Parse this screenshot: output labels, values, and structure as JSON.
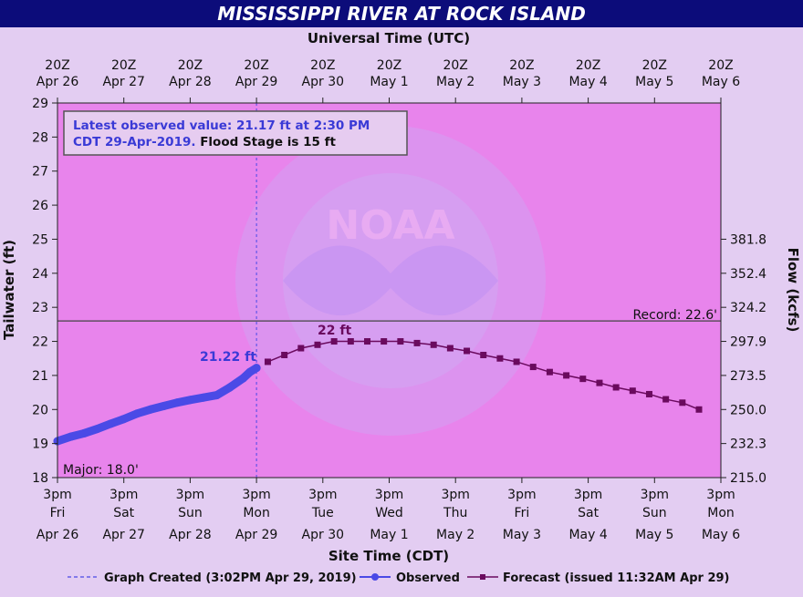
{
  "colors": {
    "title_bg": "#0c0c7a",
    "plot_bg": "#e884ec",
    "outer_bg": "#e3cdf2",
    "observed": "#4a4ae6",
    "forecast": "#6a0a5e",
    "record_line": "#444444",
    "annotation_blue": "#3a3ad6"
  },
  "chart_data": {
    "type": "line",
    "title": "MISSISSIPPI RIVER AT ROCK ISLAND",
    "top_axis_title": "Universal Time (UTC)",
    "xlabel": "Site Time (CDT)",
    "ylabel": "Tailwater (ft)",
    "y2label": "Flow (kcfs)",
    "ylim": [
      18,
      29
    ],
    "xlim": [
      0,
      10
    ],
    "x_units": "days after 3pm Fri Apr 26 (CDT)",
    "y_ticks": [
      "18",
      "19",
      "20",
      "21",
      "22",
      "23",
      "24",
      "25",
      "26",
      "27",
      "28",
      "29"
    ],
    "flow_ticks": [
      {
        "stage": 18,
        "label": "215.0"
      },
      {
        "stage": 19,
        "label": "232.3"
      },
      {
        "stage": 20,
        "label": "250.0"
      },
      {
        "stage": 21,
        "label": "273.5"
      },
      {
        "stage": 22,
        "label": "297.9"
      },
      {
        "stage": 23,
        "label": "324.2"
      },
      {
        "stage": 24,
        "label": "352.4"
      },
      {
        "stage": 25,
        "label": "381.8"
      }
    ],
    "bottom_ticks": [
      {
        "time": "3pm",
        "day": "Fri",
        "date": "Apr 26"
      },
      {
        "time": "3pm",
        "day": "Sat",
        "date": "Apr 27"
      },
      {
        "time": "3pm",
        "day": "Sun",
        "date": "Apr 28"
      },
      {
        "time": "3pm",
        "day": "Mon",
        "date": "Apr 29"
      },
      {
        "time": "3pm",
        "day": "Tue",
        "date": "Apr 30"
      },
      {
        "time": "3pm",
        "day": "Wed",
        "date": "May 1"
      },
      {
        "time": "3pm",
        "day": "Thu",
        "date": "May 2"
      },
      {
        "time": "3pm",
        "day": "Fri",
        "date": "May 3"
      },
      {
        "time": "3pm",
        "day": "Sat",
        "date": "May 4"
      },
      {
        "time": "3pm",
        "day": "Sun",
        "date": "May 5"
      },
      {
        "time": "3pm",
        "day": "Mon",
        "date": "May 6"
      }
    ],
    "top_ticks": [
      {
        "time": "20Z",
        "date": "Apr 26"
      },
      {
        "time": "20Z",
        "date": "Apr 27"
      },
      {
        "time": "20Z",
        "date": "Apr 28"
      },
      {
        "time": "20Z",
        "date": "Apr 29"
      },
      {
        "time": "20Z",
        "date": "Apr 30"
      },
      {
        "time": "20Z",
        "date": "May 1"
      },
      {
        "time": "20Z",
        "date": "May 2"
      },
      {
        "time": "20Z",
        "date": "May 3"
      },
      {
        "time": "20Z",
        "date": "May 4"
      },
      {
        "time": "20Z",
        "date": "May 5"
      },
      {
        "time": "20Z",
        "date": "May 6"
      }
    ],
    "observed": {
      "name": "Observed",
      "x": [
        0.0,
        0.2,
        0.4,
        0.6,
        0.8,
        1.0,
        1.2,
        1.4,
        1.6,
        1.8,
        2.0,
        2.2,
        2.4,
        2.6,
        2.8,
        2.9,
        3.0
      ],
      "y": [
        19.07,
        19.2,
        19.3,
        19.43,
        19.58,
        19.72,
        19.88,
        20.0,
        20.1,
        20.2,
        20.28,
        20.35,
        20.42,
        20.65,
        20.92,
        21.1,
        21.22
      ]
    },
    "forecast": {
      "name": "Forecast (issued 11:32AM Apr 29)",
      "x": [
        3.17,
        3.42,
        3.67,
        3.92,
        4.17,
        4.42,
        4.67,
        4.92,
        5.17,
        5.42,
        5.67,
        5.92,
        6.17,
        6.42,
        6.67,
        6.92,
        7.17,
        7.42,
        7.67,
        7.92,
        8.17,
        8.42,
        8.67,
        8.92,
        9.17,
        9.42,
        9.67
      ],
      "y": [
        21.4,
        21.6,
        21.8,
        21.9,
        22.0,
        22.0,
        22.0,
        22.0,
        22.0,
        21.95,
        21.9,
        21.8,
        21.72,
        21.6,
        21.5,
        21.4,
        21.25,
        21.1,
        21.0,
        20.9,
        20.78,
        20.65,
        20.55,
        20.45,
        20.3,
        20.2,
        20.0
      ]
    },
    "graph_created_x": 3.0,
    "record": {
      "value": 22.6,
      "label": "Record: 22.6'"
    },
    "major": {
      "label": "Major: 18.0'"
    },
    "labels": {
      "observed_peak": "21.22 ft",
      "forecast_peak": "22 ft"
    },
    "info_box": {
      "line1": "Latest observed value: 21.17 ft at 2:30 PM",
      "line2_blue": "CDT 29-Apr-2019.",
      "line2_black": " Flood Stage is 15 ft"
    },
    "legend": {
      "created": "Graph Created (3:02PM Apr 29, 2019)",
      "observed": "Observed",
      "forecast": "Forecast (issued 11:32AM Apr 29)"
    }
  }
}
